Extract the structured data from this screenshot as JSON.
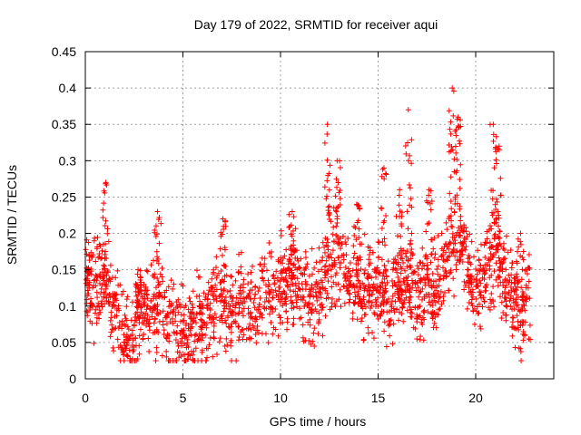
{
  "chart_data": {
    "type": "scatter",
    "title": "Day 179 of 2022, SRMTID for receiver aqui",
    "xlabel": "GPS time / hours",
    "ylabel": "SRMTID / TECUs",
    "xlim": [
      0,
      24
    ],
    "ylim": [
      0,
      0.45
    ],
    "xticks": [
      0,
      5,
      10,
      15,
      20
    ],
    "yticks": [
      0,
      0.05,
      0.1,
      0.15,
      0.2,
      0.25,
      0.3,
      0.35,
      0.4,
      0.45
    ],
    "xtick_labels": [
      "0",
      "5",
      "10",
      "15",
      "20"
    ],
    "ytick_labels": [
      "0",
      "0.05",
      "0.1",
      "0.15",
      "0.2",
      "0.25",
      "0.3",
      "0.35",
      "0.4",
      "0.45"
    ],
    "grid": true,
    "marker": "+",
    "color": "#ff0000",
    "series": [
      {
        "name": "SRMTID",
        "profile": [
          [
            0.0,
            0.12
          ],
          [
            0.3,
            0.13
          ],
          [
            0.6,
            0.12
          ],
          [
            1.0,
            0.14
          ],
          [
            1.3,
            0.1
          ],
          [
            1.6,
            0.09
          ],
          [
            2.0,
            0.06
          ],
          [
            2.3,
            0.05
          ],
          [
            2.6,
            0.08
          ],
          [
            3.0,
            0.1
          ],
          [
            3.5,
            0.09
          ],
          [
            4.0,
            0.08
          ],
          [
            4.5,
            0.075
          ],
          [
            5.0,
            0.075
          ],
          [
            5.5,
            0.07
          ],
          [
            6.0,
            0.08
          ],
          [
            6.5,
            0.09
          ],
          [
            7.0,
            0.095
          ],
          [
            7.5,
            0.1
          ],
          [
            8.0,
            0.1
          ],
          [
            8.5,
            0.11
          ],
          [
            9.0,
            0.115
          ],
          [
            9.5,
            0.12
          ],
          [
            10.0,
            0.13
          ],
          [
            10.5,
            0.14
          ],
          [
            11.0,
            0.125
          ],
          [
            11.5,
            0.11
          ],
          [
            12.0,
            0.12
          ],
          [
            12.5,
            0.15
          ],
          [
            13.0,
            0.16
          ],
          [
            13.5,
            0.14
          ],
          [
            14.0,
            0.12
          ],
          [
            14.5,
            0.13
          ],
          [
            15.0,
            0.12
          ],
          [
            15.5,
            0.11
          ],
          [
            16.0,
            0.12
          ],
          [
            16.5,
            0.12
          ],
          [
            17.0,
            0.11
          ],
          [
            17.5,
            0.12
          ],
          [
            18.0,
            0.13
          ],
          [
            18.5,
            0.16
          ],
          [
            19.0,
            0.19
          ],
          [
            19.3,
            0.2
          ],
          [
            19.6,
            0.15
          ],
          [
            20.0,
            0.12
          ],
          [
            20.5,
            0.14
          ],
          [
            21.0,
            0.18
          ],
          [
            21.5,
            0.13
          ],
          [
            22.0,
            0.11
          ],
          [
            22.3,
            0.08
          ],
          [
            22.8,
            0.12
          ]
        ],
        "spikes": [
          {
            "x": 0.2,
            "ymax": 0.17
          },
          {
            "x": 1.05,
            "ymax": 0.27
          },
          {
            "x": 2.7,
            "ymax": 0.15
          },
          {
            "x": 3.7,
            "ymax": 0.23
          },
          {
            "x": 7.05,
            "ymax": 0.22
          },
          {
            "x": 10.6,
            "ymax": 0.23
          },
          {
            "x": 12.4,
            "ymax": 0.35
          },
          {
            "x": 12.9,
            "ymax": 0.3
          },
          {
            "x": 13.9,
            "ymax": 0.24
          },
          {
            "x": 15.3,
            "ymax": 0.29
          },
          {
            "x": 16.1,
            "ymax": 0.26
          },
          {
            "x": 16.55,
            "ymax": 0.37
          },
          {
            "x": 17.6,
            "ymax": 0.26
          },
          {
            "x": 18.8,
            "ymax": 0.4
          },
          {
            "x": 19.1,
            "ymax": 0.36
          },
          {
            "x": 20.9,
            "ymax": 0.35
          },
          {
            "x": 21.2,
            "ymax": 0.32
          },
          {
            "x": 22.3,
            "ymax": 0.2
          }
        ]
      }
    ]
  }
}
